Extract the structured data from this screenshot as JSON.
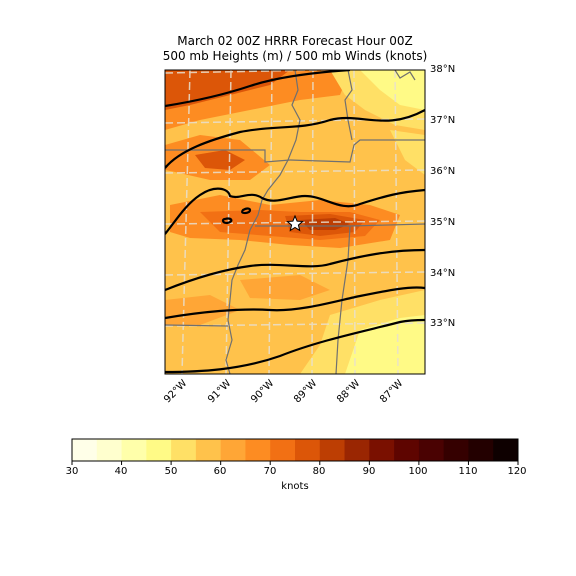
{
  "title": {
    "line1": "March 02 00Z HRRR Forecast Hour 00Z",
    "line2": "500 mb Heights (m) / 500 mb Winds (knots)"
  },
  "map": {
    "lat_labels": [
      "38°N",
      "37°N",
      "36°N",
      "35°N",
      "34°N",
      "33°N"
    ],
    "lon_labels": [
      "92°W",
      "91°W",
      "90°W",
      "89°W",
      "88°W",
      "87°W"
    ],
    "marker": "star-icon"
  },
  "colorbar": {
    "ticks": [
      "30",
      "40",
      "50",
      "60",
      "70",
      "80",
      "90",
      "100",
      "110",
      "120"
    ],
    "unit": "knots",
    "colors": [
      "#ffffe8",
      "#ffffce",
      "#ffffaa",
      "#fffa86",
      "#ffe066",
      "#ffc24b",
      "#ffa636",
      "#fd8c22",
      "#f27014",
      "#dc5608",
      "#bd3e03",
      "#9a2602",
      "#7a1000",
      "#5e0500",
      "#4a0202",
      "#350000",
      "#230000",
      "#0e0000"
    ]
  }
}
